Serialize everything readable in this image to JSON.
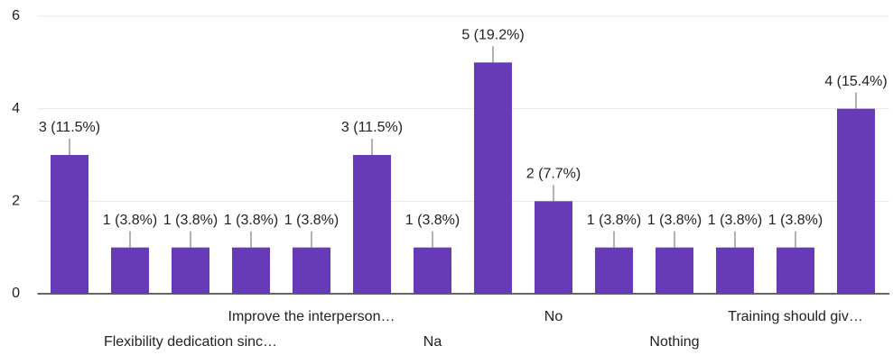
{
  "chart_data": {
    "type": "bar",
    "categories": [
      null,
      null,
      "Flexibility dedication sinc…",
      null,
      "Improve the interperson…",
      null,
      "Na",
      null,
      "No",
      null,
      "Nothing",
      null,
      "Training should giv…",
      null
    ],
    "values": [
      3,
      1,
      1,
      1,
      1,
      3,
      1,
      5,
      2,
      1,
      1,
      1,
      1,
      4
    ],
    "value_labels": [
      "3 (11.5%)",
      "1 (3.8%)",
      "1 (3.8%)",
      "1 (3.8%)",
      "1 (3.8%)",
      "3 (11.5%)",
      "1 (3.8%)",
      "5 (19.2%)",
      "2 (7.7%)",
      "1 (3.8%)",
      "1 (3.8%)",
      "1 (3.8%)",
      "1 (3.8%)",
      "4 (15.4%)"
    ],
    "color": "#673ab7",
    "ylim": [
      0,
      6
    ],
    "yticks": [
      0,
      2,
      4,
      6
    ],
    "grid": true
  }
}
